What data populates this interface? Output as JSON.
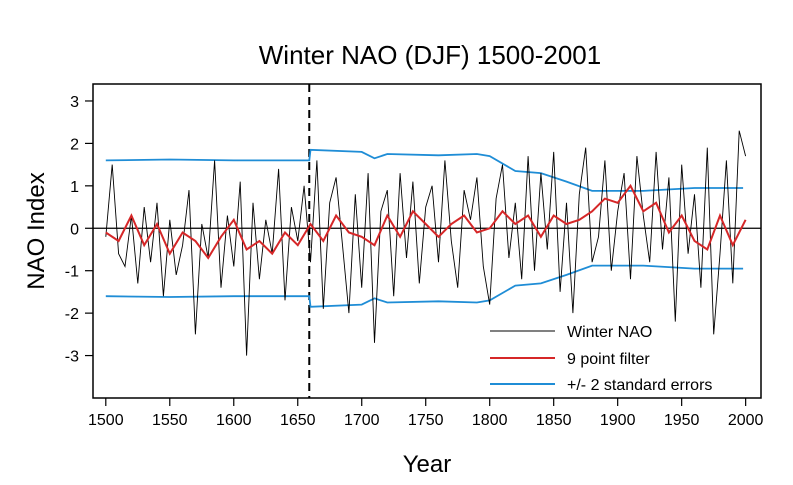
{
  "chart_data": {
    "type": "line",
    "title": "Winter NAO (DJF) 1500-2001",
    "xlabel": "Year",
    "ylabel": "NAO Index",
    "xlim": [
      1500,
      2001
    ],
    "ylim": [
      -4,
      3.4
    ],
    "x_ticks": [
      1500,
      1550,
      1600,
      1650,
      1700,
      1750,
      1800,
      1850,
      1900,
      1950,
      2000
    ],
    "y_ticks": [
      -3,
      -2,
      -1,
      0,
      1,
      2,
      3
    ],
    "x_tick_labels": [
      "1500",
      "1550",
      "1600",
      "1650",
      "1700",
      "1750",
      "1800",
      "1850",
      "1900",
      "1950",
      "2000"
    ],
    "y_tick_labels": [
      "-3",
      "-2",
      "-1",
      "0",
      "1",
      "2",
      "3"
    ],
    "vertical_marker_year": 1659,
    "zero_line": 0,
    "legend_position": "bottom-right",
    "series": [
      {
        "name": "Winter NAO",
        "color": "#000000",
        "x": [
          1500,
          1505,
          1510,
          1515,
          1520,
          1525,
          1530,
          1535,
          1540,
          1545,
          1550,
          1555,
          1560,
          1565,
          1570,
          1575,
          1580,
          1585,
          1590,
          1595,
          1600,
          1605,
          1610,
          1615,
          1620,
          1625,
          1630,
          1635,
          1640,
          1645,
          1650,
          1655,
          1660,
          1665,
          1670,
          1675,
          1680,
          1685,
          1690,
          1695,
          1700,
          1705,
          1710,
          1715,
          1720,
          1725,
          1730,
          1735,
          1740,
          1745,
          1750,
          1755,
          1760,
          1765,
          1770,
          1775,
          1780,
          1785,
          1790,
          1795,
          1800,
          1805,
          1810,
          1815,
          1820,
          1825,
          1830,
          1835,
          1840,
          1845,
          1850,
          1855,
          1860,
          1865,
          1870,
          1875,
          1880,
          1885,
          1890,
          1895,
          1900,
          1905,
          1910,
          1915,
          1920,
          1925,
          1930,
          1935,
          1940,
          1945,
          1950,
          1955,
          1960,
          1965,
          1970,
          1975,
          1980,
          1985,
          1990,
          1995,
          2000
        ],
        "values": [
          -0.2,
          1.5,
          -0.6,
          -0.9,
          0.3,
          -1.3,
          0.5,
          -0.8,
          0.6,
          -1.6,
          0.2,
          -1.1,
          -0.4,
          0.9,
          -2.5,
          0.1,
          -0.7,
          1.6,
          -1.4,
          0.3,
          -0.9,
          1.1,
          -3.0,
          0.6,
          -1.2,
          0.2,
          -0.6,
          1.4,
          -1.7,
          0.5,
          -0.3,
          1.0,
          -0.8,
          1.6,
          -1.9,
          0.6,
          1.2,
          -0.4,
          -2.0,
          0.8,
          -1.4,
          1.3,
          -2.7,
          0.4,
          0.9,
          -1.6,
          1.3,
          -0.7,
          1.1,
          -1.3,
          0.5,
          1.0,
          -0.8,
          1.6,
          -0.3,
          -1.4,
          0.9,
          0.2,
          1.2,
          -0.9,
          -1.8,
          0.7,
          1.5,
          -0.7,
          0.6,
          -1.2,
          1.7,
          -1.0,
          1.3,
          -0.5,
          1.8,
          -1.5,
          0.6,
          -2.0,
          0.8,
          1.9,
          -0.8,
          -0.2,
          1.6,
          -1.0,
          0.4,
          1.3,
          -1.2,
          1.7,
          0.3,
          -0.8,
          1.8,
          -0.5,
          1.2,
          -2.2,
          1.5,
          -0.6,
          0.8,
          -1.4,
          1.9,
          -2.5,
          -0.6,
          1.6,
          -1.3,
          2.3,
          1.7
        ]
      },
      {
        "name": "9 point filter",
        "color": "#d62728",
        "x": [
          1500,
          1510,
          1520,
          1530,
          1540,
          1550,
          1560,
          1570,
          1580,
          1590,
          1600,
          1610,
          1620,
          1630,
          1640,
          1650,
          1660,
          1670,
          1680,
          1690,
          1700,
          1710,
          1720,
          1730,
          1740,
          1750,
          1760,
          1770,
          1780,
          1790,
          1800,
          1810,
          1820,
          1830,
          1840,
          1850,
          1860,
          1870,
          1880,
          1890,
          1900,
          1910,
          1920,
          1930,
          1940,
          1950,
          1960,
          1970,
          1980,
          1990,
          2000
        ],
        "values": [
          -0.1,
          -0.3,
          0.3,
          -0.4,
          0.1,
          -0.6,
          -0.1,
          -0.3,
          -0.7,
          -0.2,
          0.2,
          -0.5,
          -0.3,
          -0.6,
          -0.1,
          -0.4,
          0.1,
          -0.3,
          0.3,
          -0.1,
          -0.2,
          -0.4,
          0.3,
          -0.2,
          0.4,
          0.1,
          -0.2,
          0.1,
          0.3,
          -0.1,
          0.0,
          0.4,
          0.1,
          0.3,
          -0.2,
          0.3,
          0.1,
          0.2,
          0.4,
          0.7,
          0.6,
          1.0,
          0.4,
          0.6,
          -0.1,
          0.3,
          -0.3,
          -0.5,
          0.3,
          -0.4,
          0.2
        ]
      },
      {
        "name": "+/- 2 standard errors",
        "color": "#1f8dd6",
        "x": [
          1500,
          1550,
          1600,
          1659,
          1660,
          1700,
          1710,
          1720,
          1760,
          1790,
          1800,
          1820,
          1840,
          1860,
          1880,
          1920,
          1960,
          1998
        ],
        "upper": [
          1.6,
          1.62,
          1.6,
          1.6,
          1.85,
          1.8,
          1.65,
          1.75,
          1.72,
          1.75,
          1.7,
          1.35,
          1.3,
          1.1,
          0.88,
          0.88,
          0.95,
          0.95
        ],
        "lower": [
          -1.6,
          -1.62,
          -1.6,
          -1.6,
          -1.85,
          -1.8,
          -1.65,
          -1.75,
          -1.72,
          -1.75,
          -1.7,
          -1.35,
          -1.3,
          -1.1,
          -0.88,
          -0.88,
          -0.95,
          -0.95
        ]
      }
    ]
  }
}
